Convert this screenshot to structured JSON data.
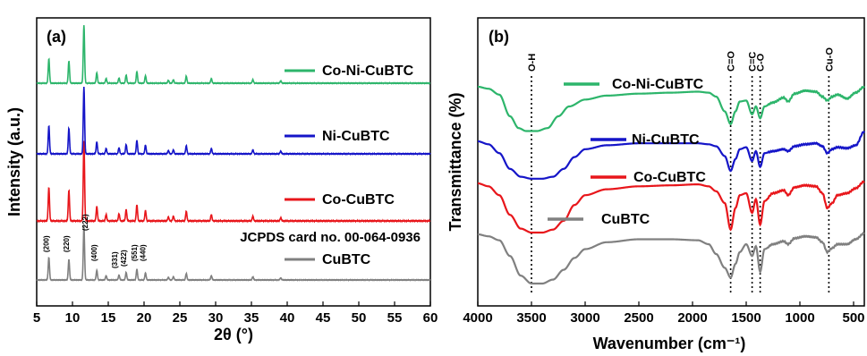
{
  "chart_data": [
    {
      "type": "line",
      "panel_label": "(a)",
      "xlabel": "2θ (°)",
      "ylabel": "Intensity (a.u.)",
      "xlim": [
        5,
        60
      ],
      "xticks": [
        5,
        10,
        15,
        20,
        25,
        30,
        35,
        40,
        45,
        50,
        55,
        60
      ],
      "annotation": "JCPDS card no. 00-064-0936",
      "peaks": [
        {
          "x": 6.7,
          "h": 0.42,
          "hkl": "(200)"
        },
        {
          "x": 9.5,
          "h": 0.38,
          "hkl": "(220)"
        },
        {
          "x": 11.6,
          "h": 1.0,
          "hkl": "(222)"
        },
        {
          "x": 13.4,
          "h": 0.18,
          "hkl": "(400)"
        },
        {
          "x": 14.7,
          "h": 0.08,
          "hkl": ""
        },
        {
          "x": 16.5,
          "h": 0.09,
          "hkl": "(331)"
        },
        {
          "x": 17.5,
          "h": 0.14,
          "hkl": "(422)"
        },
        {
          "x": 19.0,
          "h": 0.2,
          "hkl": "(551)"
        },
        {
          "x": 20.2,
          "h": 0.13,
          "hkl": "(440)"
        },
        {
          "x": 23.4,
          "h": 0.05,
          "hkl": ""
        },
        {
          "x": 24.1,
          "h": 0.06,
          "hkl": ""
        },
        {
          "x": 25.9,
          "h": 0.12,
          "hkl": ""
        },
        {
          "x": 29.4,
          "h": 0.08,
          "hkl": ""
        },
        {
          "x": 35.2,
          "h": 0.06,
          "hkl": ""
        },
        {
          "x": 39.1,
          "h": 0.04,
          "hkl": ""
        }
      ],
      "series": [
        {
          "name": "CuBTC",
          "color": "#808080",
          "scale": 0.62
        },
        {
          "name": "Co-CuBTC",
          "color": "#e8161b",
          "scale": 0.8
        },
        {
          "name": "Ni-CuBTC",
          "color": "#1515c8",
          "scale": 0.8
        },
        {
          "name": "Co-Ni-CuBTC",
          "color": "#2db56b",
          "scale": 0.72
        }
      ]
    },
    {
      "type": "line",
      "panel_label": "(b)",
      "xlabel": "Wavenumber (cm⁻¹)",
      "ylabel": "Transmittance (%)",
      "xlim": [
        4000,
        400
      ],
      "xticks": [
        4000,
        3500,
        3000,
        2500,
        2000,
        1500,
        1000,
        500
      ],
      "bands": [
        {
          "x": 3500,
          "label": "O-H"
        },
        {
          "x": 1645,
          "label": "C=O"
        },
        {
          "x": 1445,
          "label": "C=C"
        },
        {
          "x": 1370,
          "label": "C-O"
        },
        {
          "x": 730,
          "label": "Cu-O"
        }
      ],
      "series": [
        {
          "name": "Co-Ni-CuBTC",
          "color": "#2db56b",
          "offset": 0.0,
          "points": [
            [
              4000,
              0.0
            ],
            [
              3900,
              0.02
            ],
            [
              3800,
              0.08
            ],
            [
              3700,
              0.3
            ],
            [
              3620,
              0.42
            ],
            [
              3550,
              0.45
            ],
            [
              3450,
              0.45
            ],
            [
              3350,
              0.42
            ],
            [
              3250,
              0.3
            ],
            [
              3150,
              0.2
            ],
            [
              3000,
              0.13
            ],
            [
              2800,
              0.09
            ],
            [
              2500,
              0.07
            ],
            [
              2200,
              0.06
            ],
            [
              1950,
              0.05
            ],
            [
              1850,
              0.06
            ],
            [
              1780,
              0.1
            ],
            [
              1700,
              0.25
            ],
            [
              1645,
              0.38
            ],
            [
              1600,
              0.25
            ],
            [
              1560,
              0.15
            ],
            [
              1500,
              0.14
            ],
            [
              1445,
              0.28
            ],
            [
              1410,
              0.2
            ],
            [
              1370,
              0.32
            ],
            [
              1330,
              0.2
            ],
            [
              1250,
              0.16
            ],
            [
              1150,
              0.11
            ],
            [
              1110,
              0.15
            ],
            [
              1050,
              0.07
            ],
            [
              950,
              0.04
            ],
            [
              850,
              0.05
            ],
            [
              790,
              0.1
            ],
            [
              745,
              0.14
            ],
            [
              700,
              0.1
            ],
            [
              650,
              0.08
            ],
            [
              560,
              0.12
            ],
            [
              480,
              0.06
            ],
            [
              400,
              0.0
            ]
          ]
        },
        {
          "name": "Ni-CuBTC",
          "color": "#1515c8",
          "offset": 0.0,
          "points": [
            [
              4000,
              0.0
            ],
            [
              3900,
              0.03
            ],
            [
              3800,
              0.12
            ],
            [
              3700,
              0.28
            ],
            [
              3600,
              0.36
            ],
            [
              3500,
              0.38
            ],
            [
              3400,
              0.38
            ],
            [
              3300,
              0.36
            ],
            [
              3200,
              0.28
            ],
            [
              3100,
              0.16
            ],
            [
              3000,
              0.08
            ],
            [
              2800,
              0.04
            ],
            [
              2500,
              0.02
            ],
            [
              2200,
              0.02
            ],
            [
              1950,
              0.02
            ],
            [
              1850,
              0.03
            ],
            [
              1780,
              0.05
            ],
            [
              1700,
              0.15
            ],
            [
              1645,
              0.3
            ],
            [
              1600,
              0.18
            ],
            [
              1560,
              0.08
            ],
            [
              1500,
              0.06
            ],
            [
              1445,
              0.2
            ],
            [
              1410,
              0.1
            ],
            [
              1370,
              0.26
            ],
            [
              1330,
              0.12
            ],
            [
              1250,
              0.1
            ],
            [
              1150,
              0.08
            ],
            [
              1110,
              0.1
            ],
            [
              1050,
              0.05
            ],
            [
              950,
              0.03
            ],
            [
              850,
              0.02
            ],
            [
              790,
              0.05
            ],
            [
              745,
              0.12
            ],
            [
              700,
              0.08
            ],
            [
              650,
              0.06
            ],
            [
              560,
              0.07
            ],
            [
              480,
              0.04
            ],
            [
              400,
              -0.1
            ]
          ]
        },
        {
          "name": "Co-CuBTC",
          "color": "#e8161b",
          "offset": 0.0,
          "points": [
            [
              4000,
              0.0
            ],
            [
              3900,
              0.03
            ],
            [
              3800,
              0.12
            ],
            [
              3700,
              0.32
            ],
            [
              3600,
              0.46
            ],
            [
              3500,
              0.5
            ],
            [
              3400,
              0.5
            ],
            [
              3300,
              0.47
            ],
            [
              3200,
              0.38
            ],
            [
              3100,
              0.22
            ],
            [
              3000,
              0.12
            ],
            [
              2800,
              0.06
            ],
            [
              2500,
              0.03
            ],
            [
              2200,
              0.02
            ],
            [
              1950,
              0.01
            ],
            [
              1850,
              0.03
            ],
            [
              1780,
              0.08
            ],
            [
              1700,
              0.2
            ],
            [
              1645,
              0.47
            ],
            [
              1600,
              0.25
            ],
            [
              1560,
              0.12
            ],
            [
              1500,
              0.1
            ],
            [
              1445,
              0.3
            ],
            [
              1410,
              0.16
            ],
            [
              1370,
              0.42
            ],
            [
              1330,
              0.18
            ],
            [
              1250,
              0.1
            ],
            [
              1150,
              0.07
            ],
            [
              1110,
              0.12
            ],
            [
              1050,
              0.04
            ],
            [
              950,
              0.02
            ],
            [
              850,
              0.03
            ],
            [
              790,
              0.1
            ],
            [
              745,
              0.25
            ],
            [
              700,
              0.2
            ],
            [
              650,
              0.12
            ],
            [
              560,
              0.1
            ],
            [
              480,
              0.05
            ],
            [
              400,
              -0.02
            ]
          ]
        },
        {
          "name": "CuBTC",
          "color": "#808080",
          "offset": 0.0,
          "points": [
            [
              4000,
              0.0
            ],
            [
              3900,
              0.02
            ],
            [
              3800,
              0.06
            ],
            [
              3700,
              0.22
            ],
            [
              3600,
              0.42
            ],
            [
              3500,
              0.5
            ],
            [
              3400,
              0.5
            ],
            [
              3300,
              0.46
            ],
            [
              3200,
              0.36
            ],
            [
              3100,
              0.24
            ],
            [
              3000,
              0.15
            ],
            [
              2800,
              0.08
            ],
            [
              2500,
              0.05
            ],
            [
              2200,
              0.05
            ],
            [
              1950,
              0.06
            ],
            [
              1850,
              0.1
            ],
            [
              1780,
              0.2
            ],
            [
              1700,
              0.34
            ],
            [
              1645,
              0.44
            ],
            [
              1600,
              0.3
            ],
            [
              1560,
              0.18
            ],
            [
              1500,
              0.1
            ],
            [
              1445,
              0.22
            ],
            [
              1410,
              0.12
            ],
            [
              1370,
              0.38
            ],
            [
              1330,
              0.15
            ],
            [
              1250,
              0.1
            ],
            [
              1150,
              0.07
            ],
            [
              1110,
              0.1
            ],
            [
              1050,
              0.04
            ],
            [
              950,
              0.02
            ],
            [
              850,
              0.03
            ],
            [
              790,
              0.08
            ],
            [
              745,
              0.18
            ],
            [
              700,
              0.14
            ],
            [
              650,
              0.1
            ],
            [
              560,
              0.1
            ],
            [
              480,
              0.05
            ],
            [
              400,
              -0.01
            ]
          ]
        }
      ]
    }
  ]
}
